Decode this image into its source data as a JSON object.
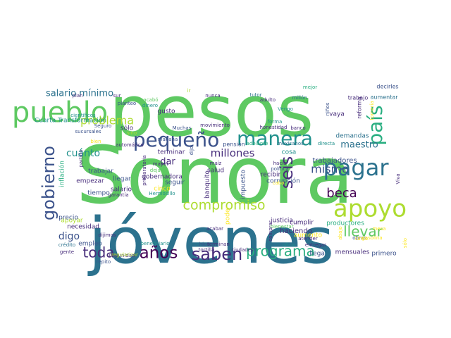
{
  "colors": {
    "background": "#ffffff",
    "palette": [
      "#440154",
      "#472d7b",
      "#3b528b",
      "#2c728e",
      "#21918c",
      "#28ae80",
      "#5ec962",
      "#addc30",
      "#fde725"
    ]
  },
  "words": [
    {
      "text": "pesos",
      "color": "#5ec962"
    },
    {
      "text": "Sonora",
      "color": "#5ec962"
    },
    {
      "text": "jóvenes",
      "color": "#2c728e"
    },
    {
      "text": "pueblo",
      "color": "#5ec962"
    },
    {
      "text": "apoyo",
      "color": "#addc30"
    },
    {
      "text": "pagar",
      "color": "#2c728e"
    },
    {
      "text": "manera",
      "color": "#21918c"
    },
    {
      "text": "pequeño",
      "color": "#3b528b"
    },
    {
      "text": "país",
      "color": "#28ae80"
    },
    {
      "text": "gobierno",
      "color": "#3b528b"
    },
    {
      "text": "seis",
      "color": "#472d7b"
    },
    {
      "text": "saben",
      "color": "#472d7b"
    },
    {
      "text": "años",
      "color": "#440154"
    },
    {
      "text": "toda",
      "color": "#472d7b"
    },
    {
      "text": "programa",
      "color": "#28ae80"
    },
    {
      "text": "compromiso",
      "color": "#addc30"
    },
    {
      "text": "llevar",
      "color": "#5ec962"
    },
    {
      "text": "beca",
      "color": "#440154"
    },
    {
      "text": "mismo",
      "color": "#3b528b"
    },
    {
      "text": "millones",
      "color": "#472d7b"
    },
    {
      "text": "problema",
      "color": "#addc30"
    },
    {
      "text": "salario mínimo",
      "color": "#2c728e"
    },
    {
      "text": "maestro",
      "color": "#2c728e"
    },
    {
      "text": "cuánto",
      "color": "#21918c"
    },
    {
      "text": "dar",
      "color": "#472d7b"
    },
    {
      "text": "digo",
      "color": "#3b528b"
    },
    {
      "text": "trabajadores",
      "color": "#3b528b"
    },
    {
      "text": "demandas",
      "color": "#2c728e"
    },
    {
      "text": "reforma",
      "color": "#472d7b"
    },
    {
      "text": "aumentar",
      "color": "#2c728e"
    },
    {
      "text": "decirles",
      "color": "#3b528b"
    },
    {
      "text": "trabajo",
      "color": "#472d7b"
    },
    {
      "text": "tomaría",
      "color": "#fde725"
    },
    {
      "text": "mejor",
      "color": "#28ae80"
    },
    {
      "text": "vaya",
      "color": "#472d7b"
    },
    {
      "text": "niños",
      "color": "#3b528b"
    },
    {
      "text": "Vengo",
      "color": "#21918c"
    },
    {
      "text": "millón",
      "color": "#2c728e"
    },
    {
      "text": "adulto",
      "color": "#472d7b"
    },
    {
      "text": "tutor",
      "color": "#2c728e"
    },
    {
      "text": "forma",
      "color": "#21918c"
    },
    {
      "text": "honestidad",
      "color": "#472d7b"
    },
    {
      "text": "banco",
      "color": "#472d7b"
    },
    {
      "text": "mexicanos",
      "color": "#2c728e"
    },
    {
      "text": "directa",
      "color": "#21918c"
    },
    {
      "text": "adelante",
      "color": "#28ae80"
    },
    {
      "text": "pensión",
      "color": "#3b528b"
    },
    {
      "text": "cosa",
      "color": "#21918c"
    },
    {
      "text": "hacia",
      "color": "#472d7b"
    },
    {
      "text": "política",
      "color": "#3b528b"
    },
    {
      "text": "recibir",
      "color": "#472d7b"
    },
    {
      "text": "corrupción",
      "color": "#3b528b"
    },
    {
      "text": "productores",
      "color": "#28ae80"
    },
    {
      "text": "cumplir",
      "color": "#472d7b"
    },
    {
      "text": "justicia",
      "color": "#472d7b"
    },
    {
      "text": "bienestar",
      "color": "#5ec962"
    },
    {
      "text": "entregar",
      "color": "#472d7b"
    },
    {
      "text": "aumento",
      "color": "#fde725"
    },
    {
      "text": "atender",
      "color": "#472d7b"
    },
    {
      "text": "haciendo",
      "color": "#472d7b"
    },
    {
      "text": "oficio",
      "color": "#21918c"
    },
    {
      "text": "cabo",
      "color": "#fde725"
    },
    {
      "text": "nunca",
      "color": "#472d7b"
    },
    {
      "text": "movimiento",
      "color": "#472d7b"
    },
    {
      "text": "ir",
      "color": "#addc30"
    },
    {
      "text": "Muchas",
      "color": "#3b528b"
    },
    {
      "text": "mañana",
      "color": "#3b528b"
    },
    {
      "text": "terminar",
      "color": "#472d7b"
    },
    {
      "text": "seguir",
      "color": "#3b528b"
    },
    {
      "text": "gusto",
      "color": "#472d7b"
    },
    {
      "text": "dinero",
      "color": "#21918c"
    },
    {
      "text": "acabó",
      "color": "#5ec962"
    },
    {
      "text": "sólo",
      "color": "#472d7b"
    },
    {
      "text": "sino",
      "color": "#addc30"
    },
    {
      "text": "planteo",
      "color": "#3b528b"
    },
    {
      "text": "sur",
      "color": "#472d7b"
    },
    {
      "text": "Seguro",
      "color": "#3b528b"
    },
    {
      "text": "bien",
      "color": "#fde725"
    },
    {
      "text": "automático",
      "color": "#472d7b"
    },
    {
      "text": "sucursales",
      "color": "#3b528b"
    },
    {
      "text": "científicos",
      "color": "#21918c"
    },
    {
      "text": "plan",
      "color": "#472d7b"
    },
    {
      "text": "Cuarta Transformación",
      "color": "#21918c"
    },
    {
      "text": "inflación",
      "color": "#28ae80"
    },
    {
      "text": "partido",
      "color": "#472d7b"
    },
    {
      "text": "trabajar",
      "color": "#3b528b"
    },
    {
      "text": "dejaron",
      "color": "#5ec962"
    },
    {
      "text": "mayor",
      "color": "#472d7b"
    },
    {
      "text": "gobernadora",
      "color": "#472d7b"
    },
    {
      "text": "llegar",
      "color": "#3b528b"
    },
    {
      "text": "empezar",
      "color": "#472d7b"
    },
    {
      "text": "garantía",
      "color": "#472d7b"
    },
    {
      "text": "tiempo",
      "color": "#3b528b"
    },
    {
      "text": "salario",
      "color": "#472d7b"
    },
    {
      "text": "cinco",
      "color": "#fde725"
    },
    {
      "text": "Hermosillo",
      "color": "#21918c"
    },
    {
      "text": "apoyar",
      "color": "#addc30"
    },
    {
      "text": "necesidad",
      "color": "#472d7b"
    },
    {
      "text": "precio",
      "color": "#3b528b"
    },
    {
      "text": "empleo",
      "color": "#3b528b"
    },
    {
      "text": "crédito",
      "color": "#2c728e"
    },
    {
      "text": "gente",
      "color": "#472d7b"
    },
    {
      "text": "dijimos",
      "color": "#472d7b"
    },
    {
      "text": "repito",
      "color": "#3b528b"
    },
    {
      "text": "beneficiario",
      "color": "#21918c"
    },
    {
      "text": "impunidad",
      "color": "#472d7b"
    },
    {
      "text": "regularizar",
      "color": "#addc30"
    },
    {
      "text": "preparatoria",
      "color": "#472d7b"
    },
    {
      "text": "dijo",
      "color": "#3b528b"
    },
    {
      "text": "maíz",
      "color": "#472d7b"
    },
    {
      "text": "salud",
      "color": "#472d7b"
    },
    {
      "text": "banquito",
      "color": "#472d7b"
    },
    {
      "text": "impuesto",
      "color": "#3b528b"
    },
    {
      "text": "poder",
      "color": "#fde725"
    },
    {
      "text": "acabar",
      "color": "#472d7b"
    },
    {
      "text": "hice",
      "color": "#3b528b"
    },
    {
      "text": "terminan",
      "color": "#472d7b"
    },
    {
      "text": "tortilla",
      "color": "#472d7b"
    },
    {
      "text": "ciudades",
      "color": "#472d7b"
    },
    {
      "text": "comprar",
      "color": "#472d7b"
    },
    {
      "text": "llega",
      "color": "#3b528b"
    },
    {
      "text": "mensuales",
      "color": "#472d7b"
    },
    {
      "text": "obras",
      "color": "#3b528b"
    },
    {
      "text": "gasolina",
      "color": "#fde725"
    },
    {
      "text": "Viva",
      "color": "#472d7b"
    },
    {
      "text": "primero",
      "color": "#3b528b"
    },
    {
      "text": "sólo",
      "color": "#fde725"
    },
    {
      "text": "abajo",
      "color": "#fde725"
    },
    {
      "text": "mesa",
      "color": "#fde725"
    },
    {
      "text": "cinco",
      "color": "#fde725"
    }
  ]
}
